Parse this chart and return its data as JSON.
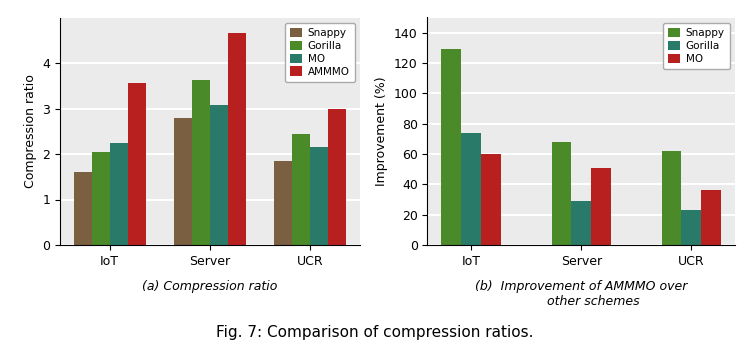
{
  "chart_a": {
    "categories": [
      "IoT",
      "Server",
      "UCR"
    ],
    "series": {
      "Snappy": [
        1.6,
        2.8,
        1.85
      ],
      "Gorilla": [
        2.05,
        3.62,
        2.45
      ],
      "MO": [
        2.25,
        3.08,
        2.15
      ],
      "AMMMO": [
        3.55,
        4.65,
        2.98
      ]
    },
    "colors": {
      "Snappy": "#7a6040",
      "Gorilla": "#4a8a28",
      "MO": "#2a7a6a",
      "AMMMO": "#b82020"
    },
    "ylabel": "Compression ratio",
    "ylim": [
      0,
      5
    ],
    "yticks": [
      0,
      1,
      2,
      3,
      4
    ],
    "caption": "(a) Compression ratio",
    "legend_loc": "upper right"
  },
  "chart_b": {
    "categories": [
      "IoT",
      "Server",
      "UCR"
    ],
    "series": {
      "Snappy": [
        129,
        68,
        62
      ],
      "Gorilla": [
        74,
        29,
        23
      ],
      "MO": [
        60,
        51,
        36
      ]
    },
    "colors": {
      "Snappy": "#4a8a28",
      "Gorilla": "#2a7a6a",
      "MO": "#b82020"
    },
    "ylabel": "Improvement (%)",
    "ylim": [
      0,
      150
    ],
    "yticks": [
      0,
      20,
      40,
      60,
      80,
      100,
      120,
      140
    ],
    "caption": "(b)  Improvement of AMMMO over\n      other schemes",
    "legend_loc": "upper right"
  },
  "fig_caption": "Fig. 7: Comparison of compression ratios.",
  "background_color": "#ebebeb",
  "grid_color": "white"
}
